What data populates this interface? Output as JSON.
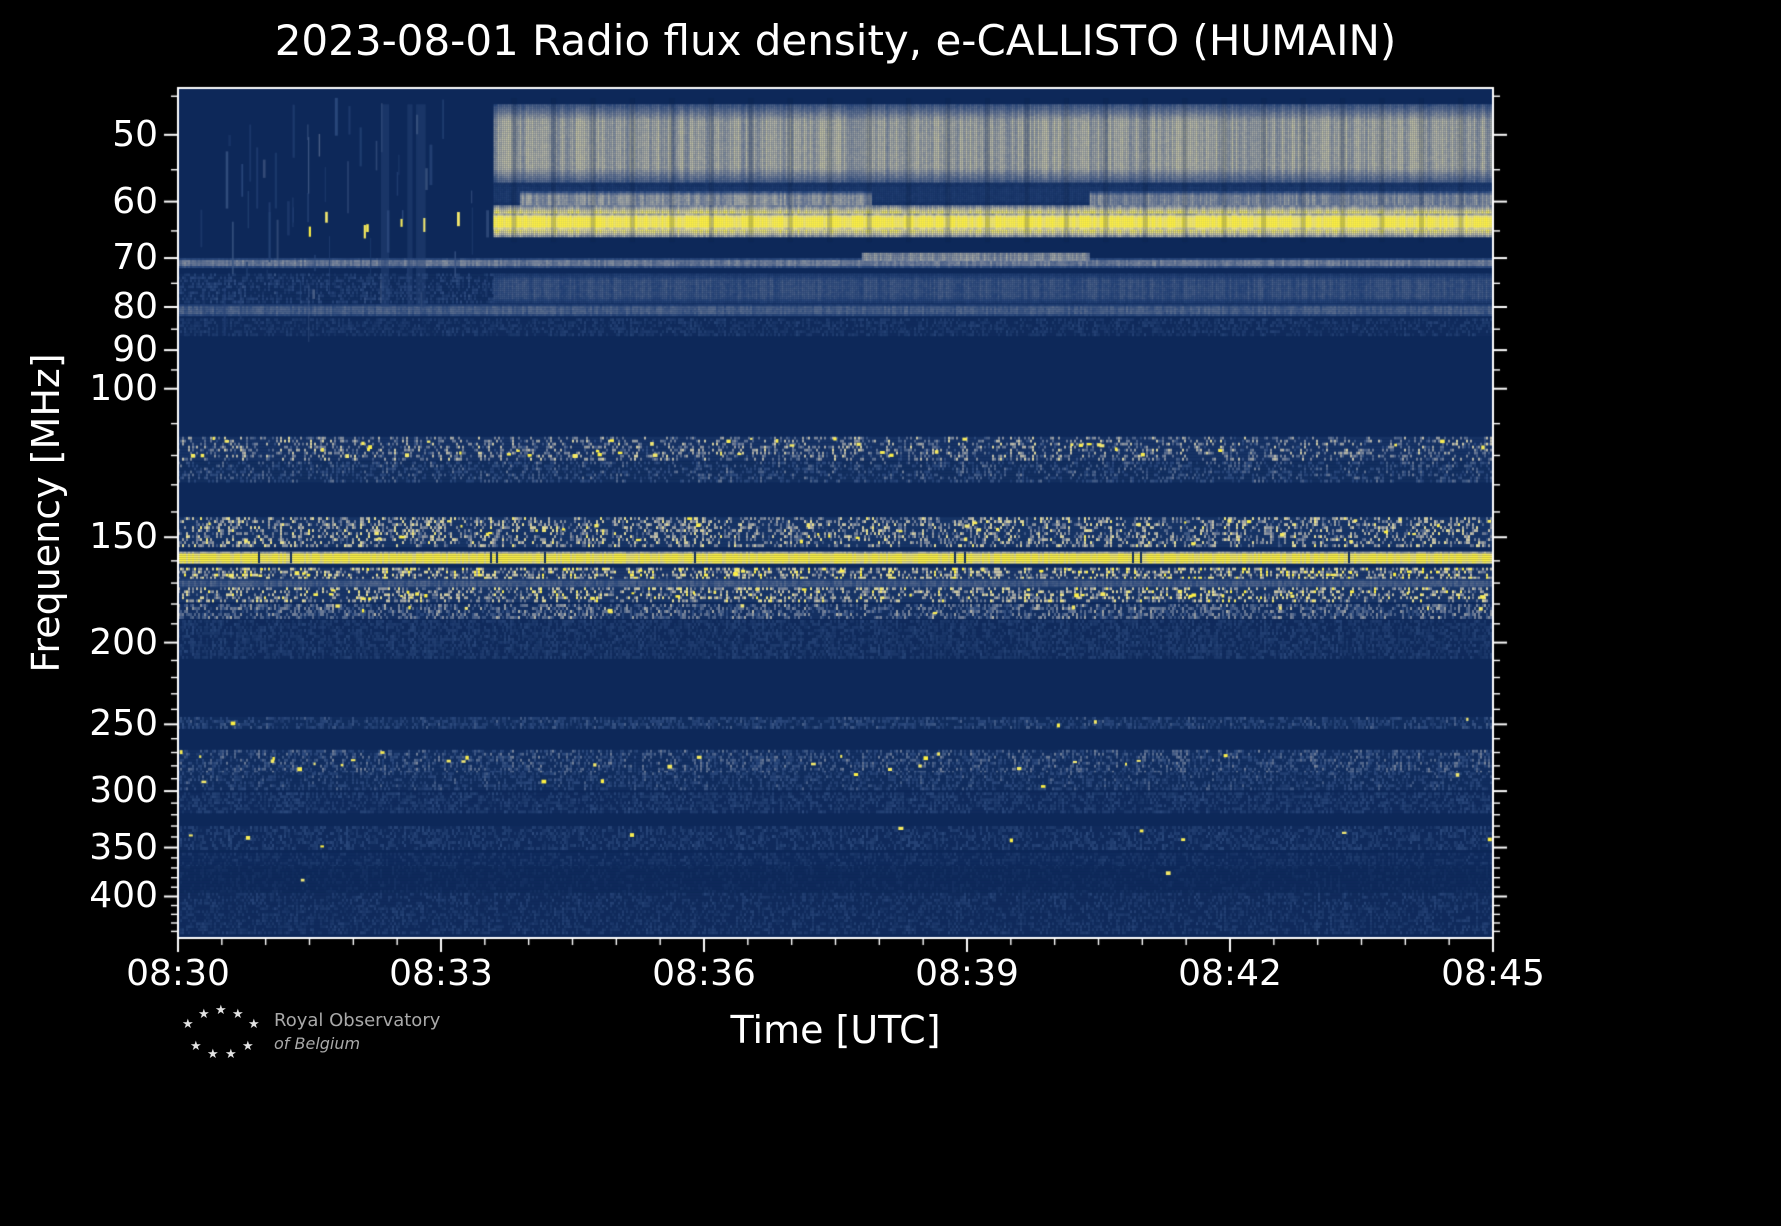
{
  "title": "2023-08-01 Radio flux density, e-CALLISTO (HUMAIN)",
  "axes": {
    "x_label": "Time [UTC]",
    "y_label": "Frequency [MHz]"
  },
  "logo": {
    "line1": "Royal Observatory",
    "line2": "of Belgium"
  },
  "chart_data": {
    "type": "heatmap",
    "title": "2023-08-01 Radio flux density, e-CALLISTO (HUMAIN)",
    "date": "2023-08-01",
    "instrument": "e-CALLISTO",
    "station": "HUMAIN",
    "xlabel": "Time [UTC]",
    "ylabel": "Frequency [MHz]",
    "time_span_min": 15,
    "x_ticks": [
      {
        "label": "08:30",
        "minute": 0
      },
      {
        "label": "08:33",
        "minute": 3
      },
      {
        "label": "08:36",
        "minute": 6
      },
      {
        "label": "08:39",
        "minute": 9
      },
      {
        "label": "08:42",
        "minute": 12
      },
      {
        "label": "08:45",
        "minute": 15
      }
    ],
    "x_minor_step_min": 0.5,
    "freq_scale": "log",
    "freq_range_mhz": [
      44,
      448
    ],
    "y_ticks": [
      50,
      60,
      70,
      80,
      90,
      100,
      150,
      200,
      250,
      300,
      350,
      400
    ],
    "y_minor_ticks": [
      45,
      55,
      65,
      75,
      85,
      95,
      110,
      120,
      130,
      140,
      160,
      170,
      180,
      190,
      210,
      220,
      230,
      240,
      260,
      270,
      280,
      290,
      310,
      320,
      330,
      340,
      360,
      370,
      380,
      390,
      410,
      420,
      430,
      440
    ],
    "colors": {
      "figure_background": "#000000",
      "plot_background": "#0d2859",
      "text": "#ffffff",
      "bright_emission": "#ffef3e",
      "pale_emission": "#e6dea0",
      "logo_text": "#a9a9a9"
    },
    "colormap_stops": [
      [
        0.0,
        13,
        40,
        89
      ],
      [
        0.25,
        42,
        72,
        124
      ],
      [
        0.45,
        115,
        128,
        152
      ],
      [
        0.62,
        190,
        188,
        170
      ],
      [
        0.78,
        232,
        224,
        152
      ],
      [
        1.0,
        255,
        241,
        64
      ]
    ],
    "continuum_onset_min": 3.6,
    "scan_stripe_period_min": 0.45,
    "pre_event": {
      "t": [
        0.15,
        3.55
      ],
      "f": [
        45,
        86
      ],
      "streaks": 55,
      "bright_dashes": 7,
      "wide_columns": 3
    },
    "bands": [
      {
        "name": "continuum-46-57",
        "f": [
          46,
          57
        ],
        "t": [
          3.6,
          15
        ],
        "style": "smooth",
        "intensity": 0.58
      },
      {
        "name": "gap-57-60",
        "f": [
          57,
          60.3
        ],
        "t": [
          3.6,
          15
        ],
        "style": "smooth",
        "intensity": 0.15
      },
      {
        "name": "pale-strip-58-61-a",
        "f": [
          58.3,
          61
        ],
        "t": [
          3.9,
          7.9
        ],
        "style": "smooth",
        "intensity": 0.5
      },
      {
        "name": "pale-strip-58-61-b",
        "f": [
          58.3,
          61
        ],
        "t": [
          10.4,
          15
        ],
        "style": "smooth",
        "intensity": 0.48
      },
      {
        "name": "bright-60-66",
        "f": [
          60.6,
          66
        ],
        "t": [
          3.6,
          15
        ],
        "style": "smooth",
        "intensity": 0.85
      },
      {
        "name": "bright-core-62-64",
        "f": [
          62,
          64.6
        ],
        "t": [
          3.6,
          15
        ],
        "style": "smooth",
        "intensity": 1.0
      },
      {
        "name": "line-70",
        "f": [
          70,
          71.6
        ],
        "t": [
          0,
          15
        ],
        "style": "smooth",
        "intensity": 0.42
      },
      {
        "name": "line-69-offset",
        "f": [
          69,
          70.2
        ],
        "t": [
          7.8,
          10.4
        ],
        "style": "smooth",
        "intensity": 0.5
      },
      {
        "name": "band-73-79-pre",
        "f": [
          73,
          79
        ],
        "t": [
          0,
          3.6
        ],
        "style": "speckle",
        "density": 0.5,
        "intensity": 0.16
      },
      {
        "name": "band-73-79",
        "f": [
          73,
          79
        ],
        "t": [
          3.6,
          15
        ],
        "style": "smooth",
        "intensity": 0.3
      },
      {
        "name": "band-79-82",
        "f": [
          79.4,
          81.8
        ],
        "t": [
          0,
          15
        ],
        "style": "smooth",
        "intensity": 0.33
      },
      {
        "name": "band-82-86",
        "f": [
          82.5,
          86
        ],
        "t": [
          0,
          15
        ],
        "style": "speckle",
        "density": 0.5,
        "intensity": 0.12
      },
      {
        "name": "fm-114-121",
        "f": [
          114,
          121
        ],
        "t": [
          0,
          15
        ],
        "style": "speckle",
        "density": 0.35,
        "intensity": 0.42,
        "dots": 45
      },
      {
        "name": "fm-122-129",
        "f": [
          122,
          129
        ],
        "t": [
          0,
          15
        ],
        "style": "speckle",
        "density": 0.4,
        "intensity": 0.25
      },
      {
        "name": "band-142-154",
        "f": [
          142,
          154
        ],
        "t": [
          0,
          15
        ],
        "style": "speckle",
        "density": 0.4,
        "intensity": 0.5,
        "dots": 40
      },
      {
        "name": "carrier-156-161",
        "f": [
          156,
          161
        ],
        "t": [
          0,
          15
        ],
        "style": "line",
        "intensity": 1.0,
        "breaks": true
      },
      {
        "name": "band-163-168",
        "f": [
          163,
          168
        ],
        "t": [
          0,
          15
        ],
        "style": "speckle",
        "density": 0.45,
        "intensity": 0.6,
        "dots": 25
      },
      {
        "name": "band-168-172",
        "f": [
          168,
          172
        ],
        "t": [
          0,
          15
        ],
        "style": "smooth",
        "intensity": 0.32
      },
      {
        "name": "band-172-179",
        "f": [
          172,
          179
        ],
        "t": [
          0,
          15
        ],
        "style": "speckle",
        "density": 0.4,
        "intensity": 0.55,
        "dots": 30
      },
      {
        "name": "band-180-187",
        "f": [
          180,
          187
        ],
        "t": [
          0,
          15
        ],
        "style": "speckle",
        "density": 0.5,
        "intensity": 0.35,
        "dots": 12
      },
      {
        "name": "band-188-208",
        "f": [
          188,
          208
        ],
        "t": [
          0,
          15
        ],
        "style": "speckle",
        "density": 0.55,
        "intensity": 0.13
      },
      {
        "name": "band-245-253",
        "f": [
          245,
          253
        ],
        "t": [
          0,
          15
        ],
        "style": "speckle",
        "density": 0.5,
        "intensity": 0.2,
        "dots": 4
      },
      {
        "name": "band-268-285",
        "f": [
          268,
          285
        ],
        "t": [
          0,
          15
        ],
        "style": "speckle",
        "density": 0.45,
        "intensity": 0.26,
        "dots": 26
      },
      {
        "name": "band-285-299",
        "f": [
          285,
          299
        ],
        "t": [
          0,
          15
        ],
        "style": "speckle",
        "density": 0.45,
        "intensity": 0.2,
        "dots": 6
      },
      {
        "name": "band-301-318",
        "f": [
          301,
          318
        ],
        "t": [
          0,
          15
        ],
        "style": "speckle",
        "density": 0.5,
        "intensity": 0.15
      },
      {
        "name": "band-330-352",
        "f": [
          330,
          352
        ],
        "t": [
          0,
          15
        ],
        "style": "speckle",
        "density": 0.45,
        "intensity": 0.15,
        "dots": 10
      },
      {
        "name": "band-355-368",
        "f": [
          355,
          368
        ],
        "t": [
          0,
          15
        ],
        "style": "speckle",
        "density": 0.4,
        "intensity": 0.1
      },
      {
        "name": "band-368-395",
        "f": [
          368,
          395
        ],
        "t": [
          0,
          15
        ],
        "style": "speckle",
        "density": 0.3,
        "intensity": 0.05,
        "dots": 2
      },
      {
        "name": "band-396-410",
        "f": [
          396,
          410
        ],
        "t": [
          0,
          15
        ],
        "style": "speckle",
        "density": 0.4,
        "intensity": 0.13
      },
      {
        "name": "band-412-442",
        "f": [
          412,
          442
        ],
        "t": [
          0,
          15
        ],
        "style": "speckle",
        "density": 0.45,
        "intensity": 0.12
      }
    ],
    "events": [
      {
        "desc": "Broadband continuum brightening 45-80 MHz beginning ~08:33:40 UTC, lasting through 08:45"
      },
      {
        "desc": "Strong narrowband emission ridge ~62-65 MHz"
      },
      {
        "desc": "Continuous bright carrier line ~158 MHz across full interval"
      },
      {
        "desc": "RFI speckle bands near 115-130, 145-185, 270-300 MHz"
      }
    ]
  }
}
